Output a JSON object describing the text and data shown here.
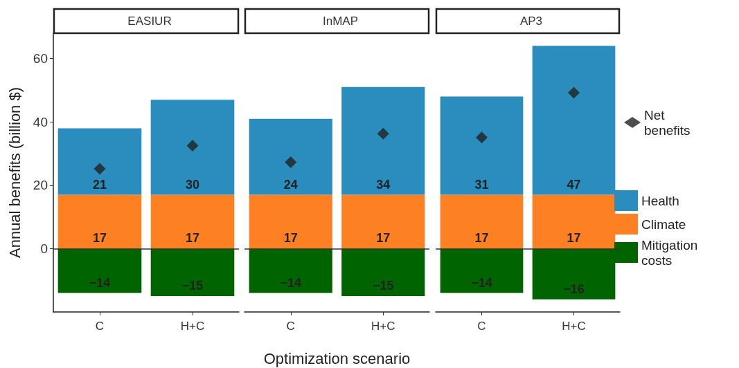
{
  "chart_data": [
    {
      "type": "bar",
      "title": "EASIUR",
      "ylabel": "Annual benefits (billion $)",
      "categories": [
        "C",
        "H+C"
      ],
      "stacked": true,
      "ylim": [
        -20,
        68
      ],
      "yticks": [
        0,
        20,
        40,
        60
      ],
      "grid": false,
      "legend": false,
      "ref_lines": [
        {
          "axis": "y",
          "value": 0
        }
      ],
      "series": [
        {
          "color": "#fd8023",
          "values": [
            17,
            17
          ],
          "value_labels": [
            "17",
            "17"
          ]
        },
        {
          "color": "#2b8cbe",
          "values": [
            21,
            30
          ],
          "value_labels": [
            "21",
            "30"
          ]
        },
        {
          "color": "#006400",
          "values": [
            -14,
            -15
          ],
          "value_labels": [
            "−14",
            "−15"
          ]
        },
        {
          "type": "scatter",
          "color": "#222222",
          "marker": "diamond",
          "x": [
            "C",
            "H+C"
          ],
          "values": [
            25.2,
            32.5
          ]
        }
      ]
    },
    {
      "type": "bar",
      "title": "InMAP",
      "xlabel": "Optimization scenario",
      "categories": [
        "C",
        "H+C"
      ],
      "stacked": true,
      "tick_labels": "x",
      "grid": false,
      "legend": false,
      "ref_lines": [
        {
          "axis": "y",
          "value": 0
        }
      ],
      "series": [
        {
          "color": "#fd8023",
          "values": [
            17,
            17
          ],
          "value_labels": [
            "17",
            "17"
          ]
        },
        {
          "color": "#2b8cbe",
          "values": [
            24,
            34
          ],
          "value_labels": [
            "24",
            "34"
          ]
        },
        {
          "color": "#006400",
          "values": [
            -14,
            -15
          ],
          "value_labels": [
            "−14",
            "−15"
          ]
        },
        {
          "type": "scatter",
          "color": "#222222",
          "marker": "diamond",
          "x": [
            "C",
            "H+C"
          ],
          "values": [
            27.3,
            36.3
          ]
        }
      ]
    },
    {
      "type": "bar",
      "title": "AP3",
      "categories": [
        "C",
        "H+C"
      ],
      "stacked": true,
      "tick_labels": "x",
      "grid": false,
      "legend": "right",
      "ref_lines": [
        {
          "axis": "y",
          "value": 0
        }
      ],
      "series": [
        {
          "name": "Climate",
          "color": "#fd8023",
          "values": [
            17,
            17
          ],
          "value_labels": [
            "17",
            "17"
          ]
        },
        {
          "name": "Health",
          "color": "#2b8cbe",
          "values": [
            31,
            47
          ],
          "value_labels": [
            "31",
            "47"
          ]
        },
        {
          "name": "Mitigation costs",
          "color": "#006400",
          "values": [
            -14,
            -16
          ],
          "value_labels": [
            "−14",
            "−16"
          ]
        },
        {
          "name": "Net benefits",
          "type": "scatter",
          "color": "#222222",
          "marker": "diamond",
          "x": [
            "C",
            "H+C"
          ],
          "values": [
            35.1,
            49.2
          ]
        }
      ]
    }
  ]
}
